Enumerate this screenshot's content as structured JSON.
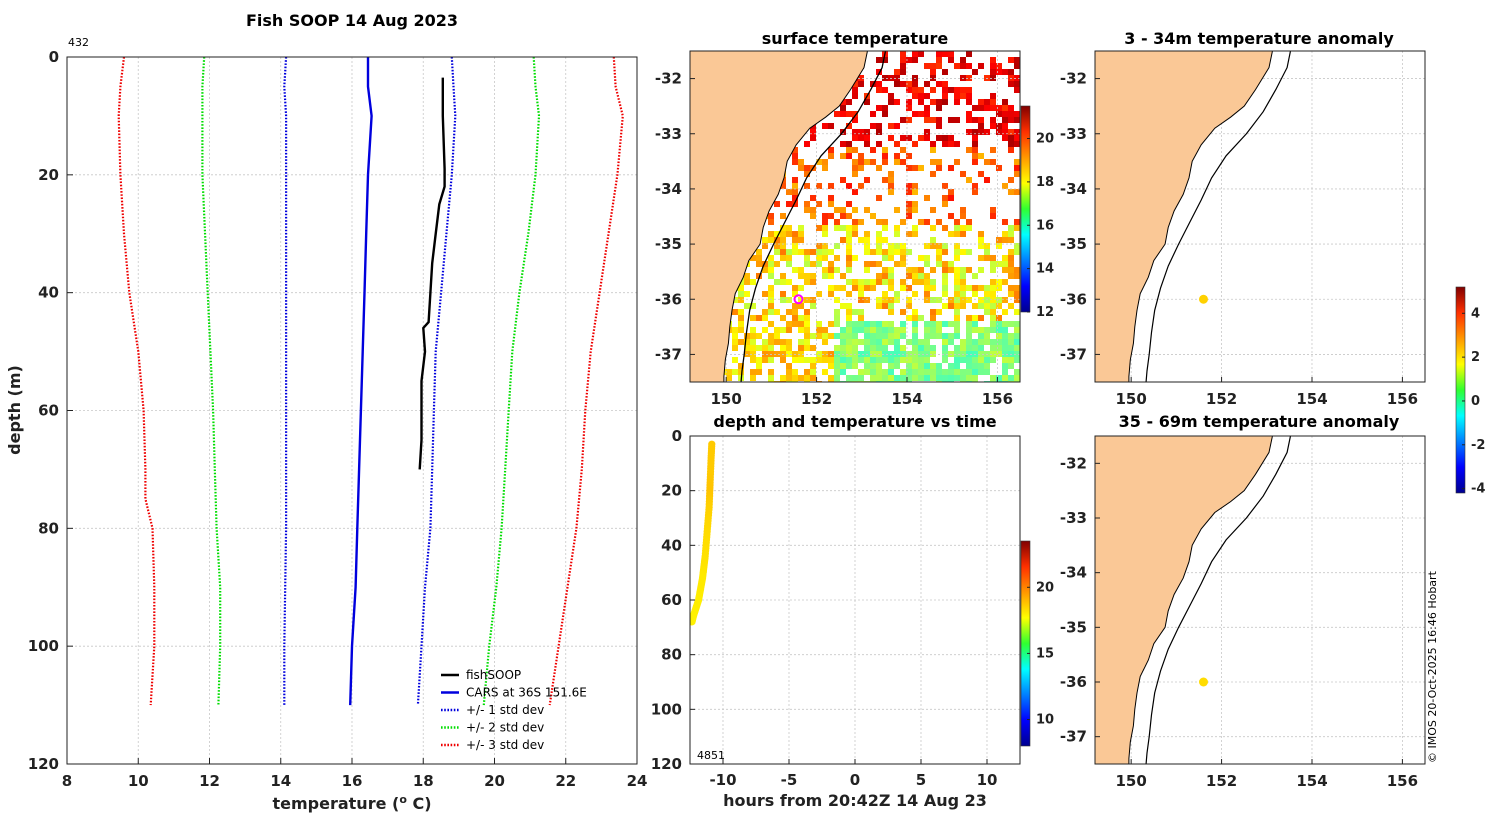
{
  "chart_data": [
    {
      "type": "line",
      "title": "Fish SOOP 14 Aug 2023",
      "corner_label": "432",
      "xlabel": "temperature (",
      "xlabel_sup": "o",
      "xlabel_end": " C)",
      "ylabel": "depth (m)",
      "xlim": [
        8,
        24
      ],
      "ylim": [
        0,
        120
      ],
      "y_reversed": true,
      "xticks": [
        "8",
        "10",
        "12",
        "14",
        "16",
        "18",
        "20",
        "22",
        "24"
      ],
      "yticks": [
        "0",
        "20",
        "40",
        "60",
        "80",
        "100",
        "120"
      ],
      "legend_position": "bottom-right",
      "series": [
        {
          "name": "fishSOOP",
          "color": "#000000",
          "style": "solid",
          "points": [
            [
              18.55,
              3.5
            ],
            [
              18.55,
              10
            ],
            [
              18.6,
              19
            ],
            [
              18.6,
              22
            ],
            [
              18.45,
              25
            ],
            [
              18.35,
              30
            ],
            [
              18.25,
              35
            ],
            [
              18.2,
              40
            ],
            [
              18.15,
              45
            ],
            [
              18.0,
              46
            ],
            [
              18.05,
              50
            ],
            [
              17.95,
              55
            ],
            [
              17.95,
              60
            ],
            [
              17.95,
              65
            ],
            [
              17.9,
              70
            ]
          ]
        },
        {
          "name": "CARS at 36S 151.6E",
          "color": "#0000dd",
          "style": "solid",
          "points": [
            [
              16.45,
              0
            ],
            [
              16.45,
              5
            ],
            [
              16.55,
              10
            ],
            [
              16.45,
              20
            ],
            [
              16.4,
              30
            ],
            [
              16.35,
              40
            ],
            [
              16.3,
              50
            ],
            [
              16.25,
              60
            ],
            [
              16.2,
              70
            ],
            [
              16.15,
              80
            ],
            [
              16.1,
              90
            ],
            [
              16.0,
              100
            ],
            [
              15.95,
              110
            ]
          ]
        },
        {
          "name": "+/- 1 std dev",
          "color": "#0000dd",
          "style": "dotted",
          "points": [
            [
              14.15,
              0
            ],
            [
              14.1,
              5
            ],
            [
              14.15,
              10
            ],
            [
              14.15,
              20
            ],
            [
              14.15,
              40
            ],
            [
              14.15,
              60
            ],
            [
              14.15,
              80
            ],
            [
              14.1,
              100
            ],
            [
              14.1,
              110
            ]
          ]
        },
        {
          "name": "",
          "color": "#0000dd",
          "style": "dotted",
          "points": [
            [
              18.8,
              0
            ],
            [
              18.85,
              5
            ],
            [
              18.9,
              10
            ],
            [
              18.8,
              20
            ],
            [
              18.65,
              30
            ],
            [
              18.5,
              40
            ],
            [
              18.35,
              50
            ],
            [
              18.3,
              60
            ],
            [
              18.25,
              70
            ],
            [
              18.2,
              80
            ],
            [
              18.05,
              90
            ],
            [
              17.95,
              100
            ],
            [
              17.85,
              110
            ]
          ]
        },
        {
          "name": "+/- 2 std dev",
          "color": "#00dd00",
          "style": "dotted",
          "points": [
            [
              11.85,
              0
            ],
            [
              11.8,
              5
            ],
            [
              11.8,
              10
            ],
            [
              11.8,
              20
            ],
            [
              11.95,
              40
            ],
            [
              12.1,
              60
            ],
            [
              12.15,
              70
            ],
            [
              12.2,
              80
            ],
            [
              12.3,
              90
            ],
            [
              12.3,
              100
            ],
            [
              12.25,
              110
            ]
          ]
        },
        {
          "name": "",
          "color": "#00dd00",
          "style": "dotted",
          "points": [
            [
              21.1,
              0
            ],
            [
              21.15,
              5
            ],
            [
              21.25,
              10
            ],
            [
              21.15,
              20
            ],
            [
              20.95,
              30
            ],
            [
              20.7,
              40
            ],
            [
              20.5,
              50
            ],
            [
              20.4,
              60
            ],
            [
              20.3,
              70
            ],
            [
              20.2,
              80
            ],
            [
              20.05,
              90
            ],
            [
              19.85,
              100
            ],
            [
              19.7,
              110
            ]
          ]
        },
        {
          "name": "+/- 3 std dev",
          "color": "#ee0000",
          "style": "dotted",
          "points": [
            [
              9.6,
              0
            ],
            [
              9.5,
              5
            ],
            [
              9.45,
              10
            ],
            [
              9.5,
              20
            ],
            [
              9.6,
              30
            ],
            [
              9.75,
              40
            ],
            [
              10.0,
              50
            ],
            [
              10.15,
              60
            ],
            [
              10.2,
              70
            ],
            [
              10.2,
              75
            ],
            [
              10.4,
              80
            ],
            [
              10.45,
              90
            ],
            [
              10.45,
              100
            ],
            [
              10.35,
              110
            ]
          ]
        },
        {
          "name": "",
          "color": "#ee0000",
          "style": "dotted",
          "points": [
            [
              23.35,
              0
            ],
            [
              23.4,
              5
            ],
            [
              23.6,
              10
            ],
            [
              23.45,
              20
            ],
            [
              23.2,
              30
            ],
            [
              22.95,
              40
            ],
            [
              22.7,
              50
            ],
            [
              22.55,
              60
            ],
            [
              22.45,
              70
            ],
            [
              22.3,
              80
            ],
            [
              22.05,
              90
            ],
            [
              21.8,
              100
            ],
            [
              21.55,
              110
            ]
          ]
        }
      ]
    },
    {
      "type": "heatmap",
      "title": "surface temperature",
      "xlim": [
        149.2,
        156.5
      ],
      "ylim": [
        -37.5,
        -31.5
      ],
      "xticks": [
        "150",
        "152",
        "154",
        "156"
      ],
      "yticks": [
        "-32",
        "-33",
        "-34",
        "-35",
        "-36",
        "-37"
      ],
      "colorbar": {
        "min": 12,
        "max": 21.5,
        "ticks": [
          "12",
          "14",
          "16",
          "18",
          "20"
        ],
        "colormap": "jet"
      },
      "marker": {
        "lon": 151.6,
        "lat": -36.0,
        "color": "#ff00ff"
      }
    },
    {
      "type": "scatter",
      "title": "depth and temperature vs time",
      "corner_label": "4851",
      "xlabel": "hours from 20:42Z 14 Aug 23",
      "xlim": [
        -12.5,
        12.5
      ],
      "ylim": [
        0,
        120
      ],
      "y_reversed": true,
      "xticks": [
        "-10",
        "-5",
        "0",
        "5",
        "10"
      ],
      "yticks": [
        "0",
        "20",
        "40",
        "60",
        "80",
        "100",
        "120"
      ],
      "colorbar": {
        "min": 8,
        "max": 23.5,
        "ticks": [
          "10",
          "15",
          "20"
        ],
        "colormap": "jet"
      },
      "points": [
        [
          -10.85,
          3,
          18.5
        ],
        [
          -10.9,
          8,
          18.5
        ],
        [
          -10.95,
          14,
          18.5
        ],
        [
          -11.0,
          20,
          18.6
        ],
        [
          -11.05,
          26,
          18.4
        ],
        [
          -11.15,
          32,
          18.3
        ],
        [
          -11.25,
          38,
          18.2
        ],
        [
          -11.35,
          44,
          18.15
        ],
        [
          -11.45,
          48,
          18.1
        ],
        [
          -11.55,
          52,
          18.0
        ],
        [
          -11.7,
          56,
          18.0
        ],
        [
          -11.85,
          60,
          17.95
        ],
        [
          -12.05,
          63,
          17.95
        ],
        [
          -12.25,
          66,
          17.9
        ],
        [
          -12.35,
          68,
          17.9
        ]
      ]
    },
    {
      "type": "scatter",
      "title": "3 - 34m temperature anomaly",
      "xlim": [
        149.2,
        156.5
      ],
      "ylim": [
        -37.5,
        -31.5
      ],
      "xticks": [
        "150",
        "152",
        "154",
        "156"
      ],
      "yticks": [
        "-32",
        "-33",
        "-34",
        "-35",
        "-36",
        "-37"
      ],
      "points": [
        [
          151.6,
          -36.0,
          2.1
        ]
      ]
    },
    {
      "type": "scatter",
      "title": "35 - 69m temperature anomaly",
      "xlim": [
        149.2,
        156.5
      ],
      "ylim": [
        -37.5,
        -31.5
      ],
      "xticks": [
        "150",
        "152",
        "154",
        "156"
      ],
      "yticks": [
        "-32",
        "-33",
        "-34",
        "-35",
        "-36",
        "-37"
      ],
      "points": [
        [
          151.6,
          -36.0,
          2.0
        ]
      ],
      "colorbar": {
        "min": -4.2,
        "max": 5.2,
        "ticks": [
          "-4",
          "-2",
          "0",
          "2",
          "4"
        ],
        "colormap": "jet"
      }
    }
  ],
  "footer": {
    "credit": "© IMOS 20-Oct-2025 16:46 Hobart"
  },
  "colors": {
    "land": "#fac896",
    "grid": "#c8c8c8"
  }
}
